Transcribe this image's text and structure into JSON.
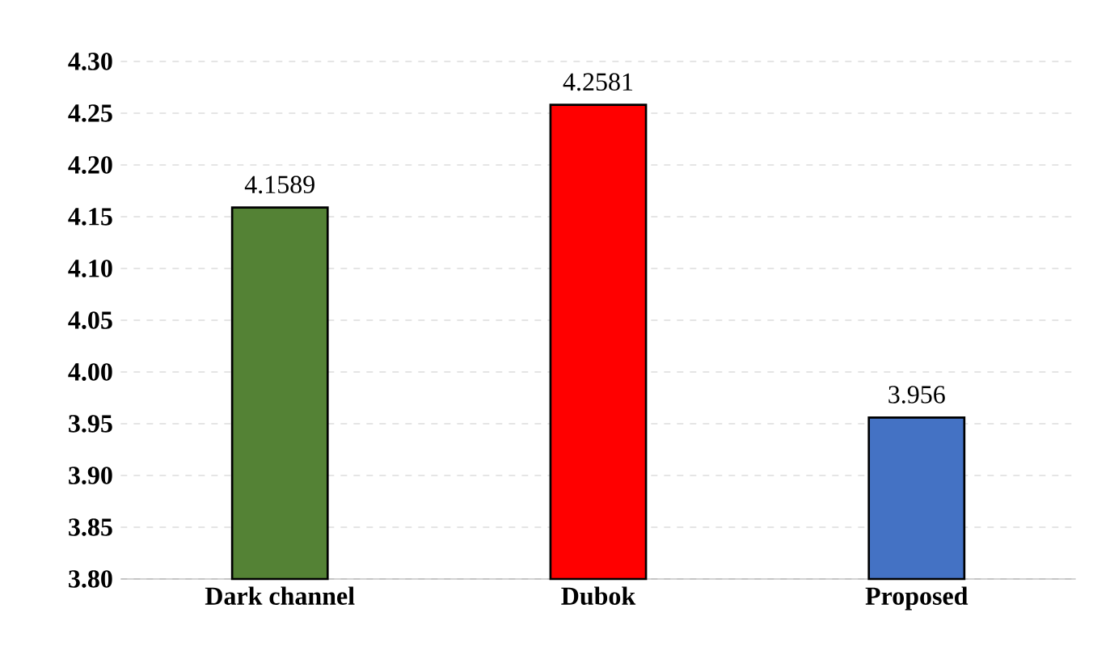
{
  "chart_data": {
    "type": "bar",
    "categories": [
      "Dark channel",
      "Dubok",
      "Proposed"
    ],
    "values": [
      4.1589,
      4.2581,
      3.956
    ],
    "colors": [
      "#548235",
      "#ff0000",
      "#4472c4"
    ],
    "ylim": [
      3.8,
      4.3
    ],
    "yticks": [
      {
        "value": 3.8,
        "label": "3.80"
      },
      {
        "value": 3.85,
        "label": "3.85"
      },
      {
        "value": 3.9,
        "label": "3.90"
      },
      {
        "value": 3.95,
        "label": "3.95"
      },
      {
        "value": 4.0,
        "label": "4.00"
      },
      {
        "value": 4.05,
        "label": "4.05"
      },
      {
        "value": 4.1,
        "label": "4.10"
      },
      {
        "value": 4.15,
        "label": "4.15"
      },
      {
        "value": 4.2,
        "label": "4.20"
      },
      {
        "value": 4.25,
        "label": "4.25"
      },
      {
        "value": 4.3,
        "label": "4.30"
      }
    ],
    "grid": "y",
    "data_labels": true
  }
}
